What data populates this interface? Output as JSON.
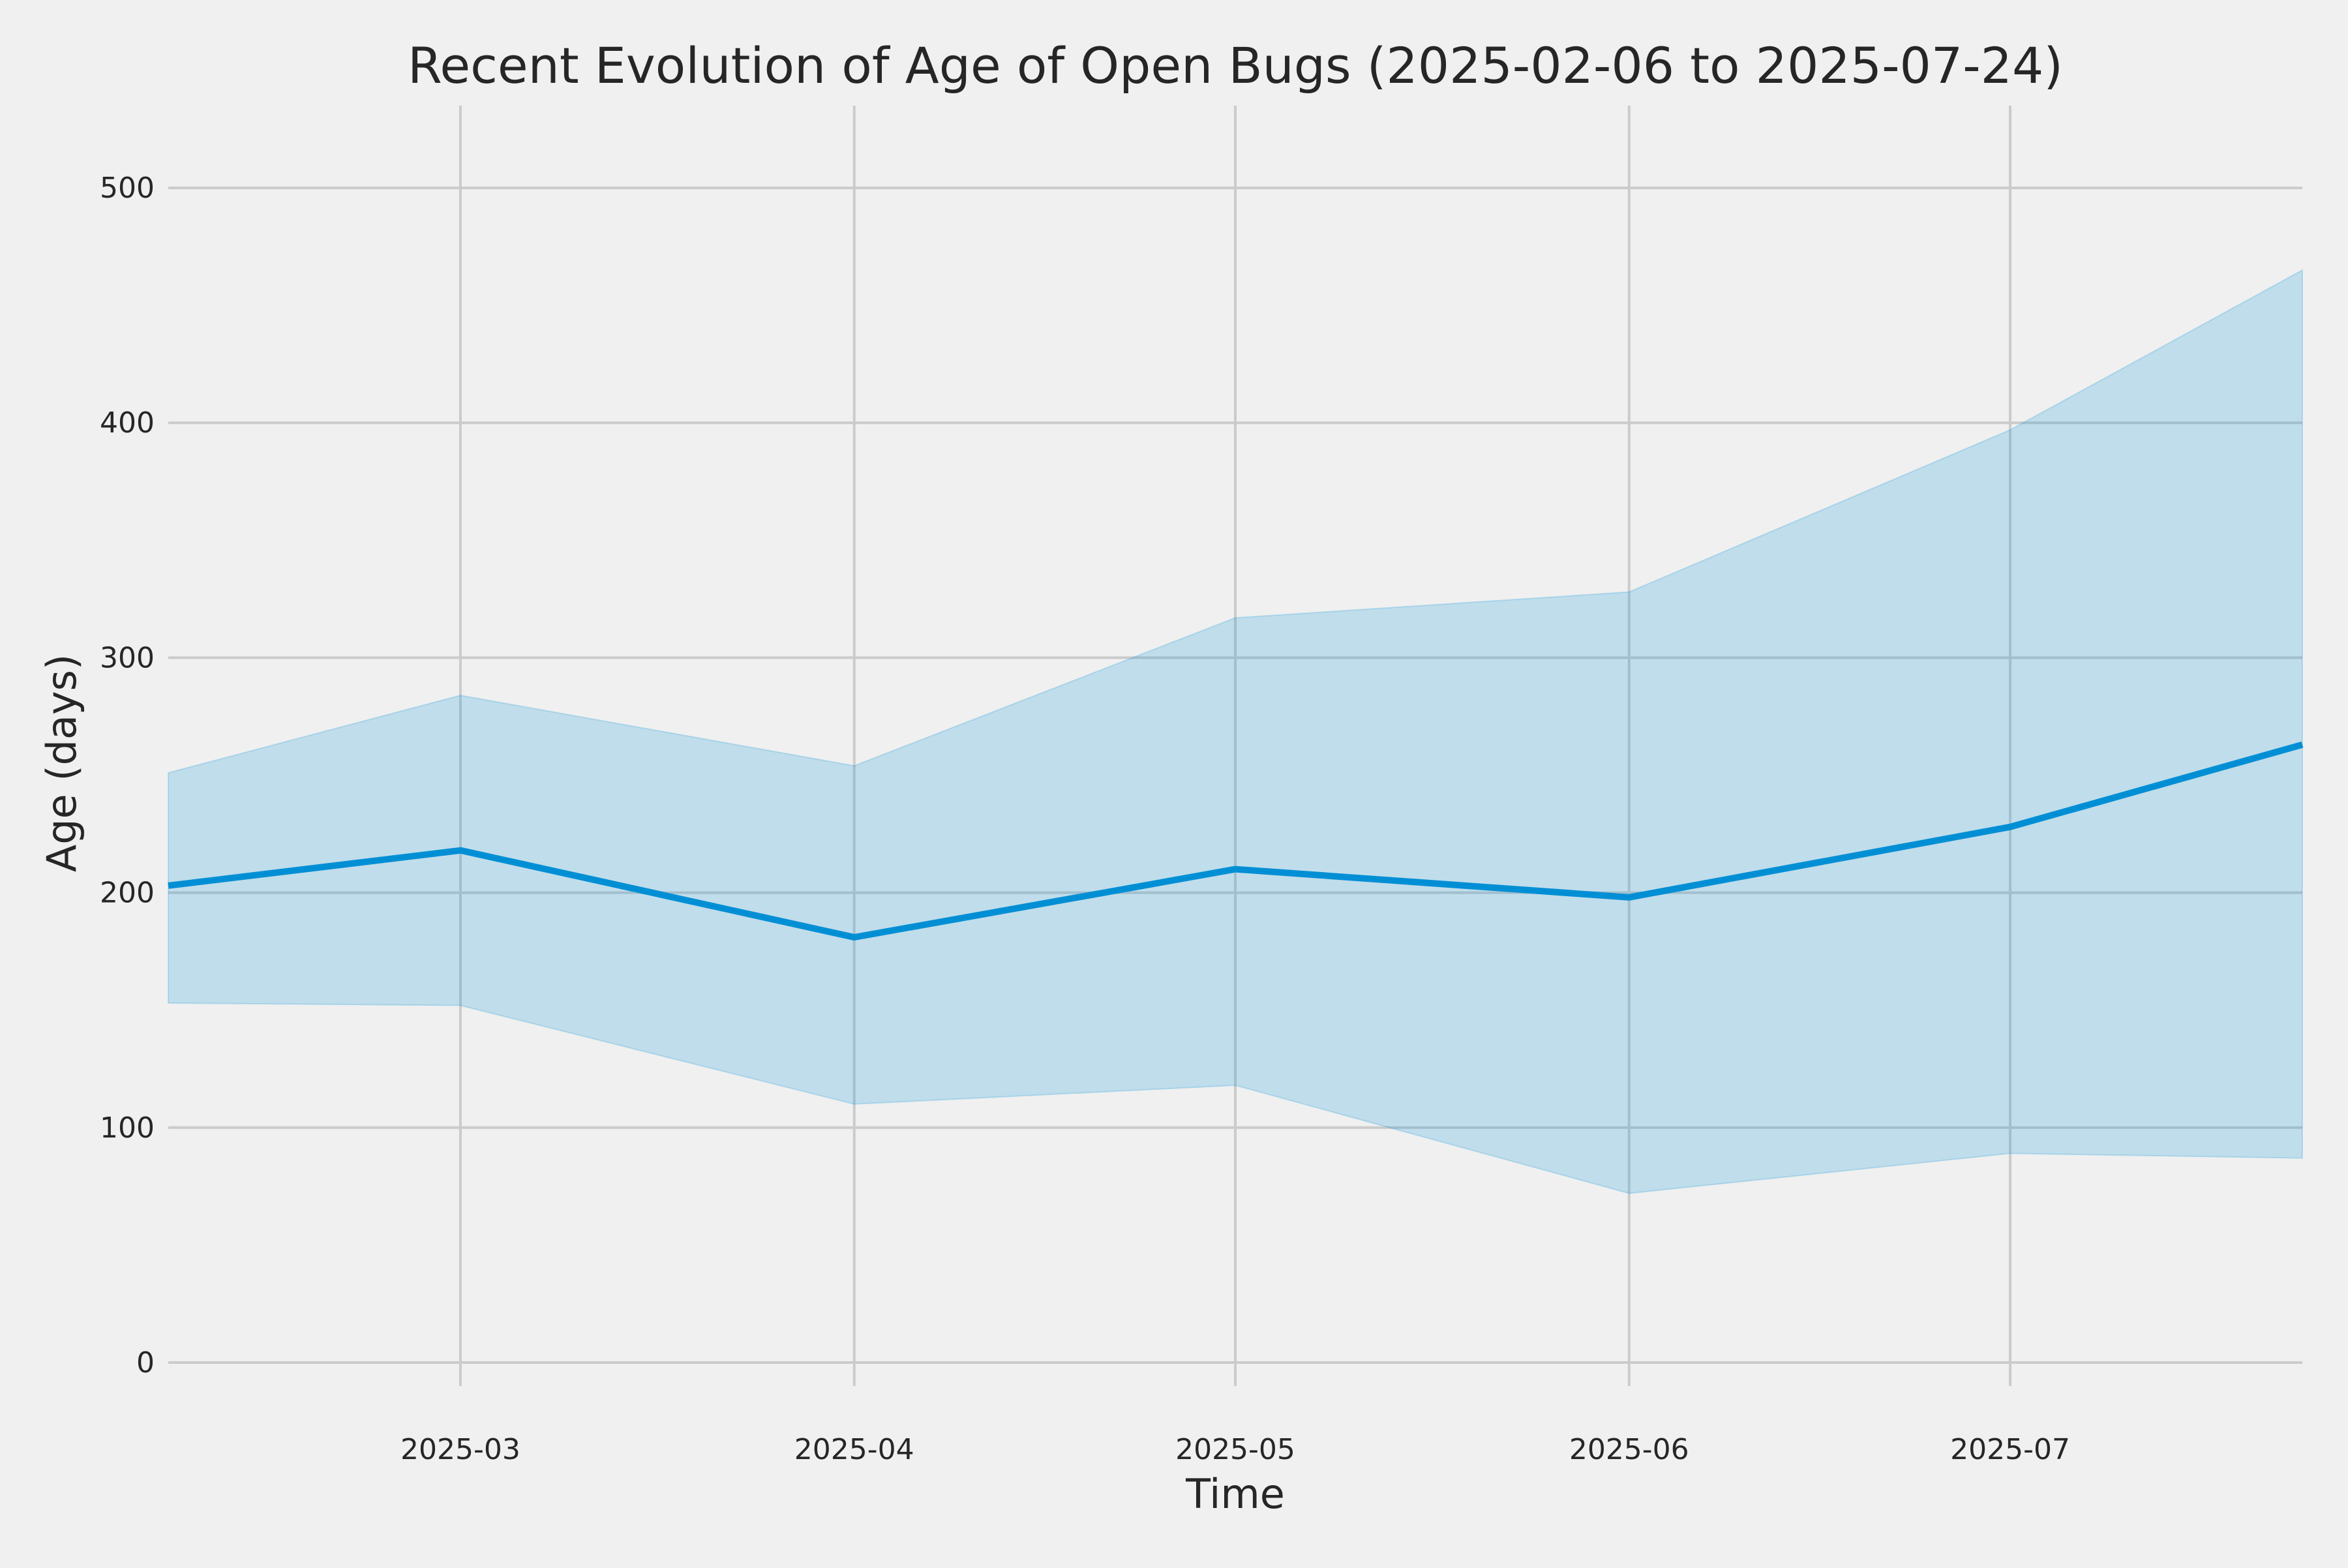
{
  "chart_data": {
    "type": "area",
    "title": "Recent Evolution of Age of Open Bugs (2025-02-06 to 2025-07-24)",
    "xlabel": "Time",
    "ylabel": "Age (days)",
    "x_range": [
      "2025-02-06",
      "2025-07-24"
    ],
    "ylim": [
      -10,
      535
    ],
    "grid": true,
    "legend": "none",
    "x_ticks": [
      {
        "date": "2025-03-01",
        "label": "2025-03"
      },
      {
        "date": "2025-04-01",
        "label": "2025-04"
      },
      {
        "date": "2025-05-01",
        "label": "2025-05"
      },
      {
        "date": "2025-06-01",
        "label": "2025-06"
      },
      {
        "date": "2025-07-01",
        "label": "2025-07"
      }
    ],
    "y_ticks": [
      0,
      100,
      200,
      300,
      400,
      500
    ],
    "x": [
      "2025-02-06",
      "2025-03-01",
      "2025-04-01",
      "2025-05-01",
      "2025-06-01",
      "2025-07-01",
      "2025-07-24"
    ],
    "series": [
      {
        "values": [
          203,
          218,
          181,
          210,
          198,
          228,
          263
        ],
        "lower": [
          153,
          152,
          110,
          118,
          72,
          89,
          87
        ],
        "upper": [
          251,
          284,
          254,
          317,
          328,
          397,
          465
        ]
      }
    ],
    "colors": {
      "line": "#008fd5",
      "band": "#008fd5",
      "grid": "#cbcbcb",
      "background": "#f0f0f0",
      "text": "#262626"
    }
  }
}
